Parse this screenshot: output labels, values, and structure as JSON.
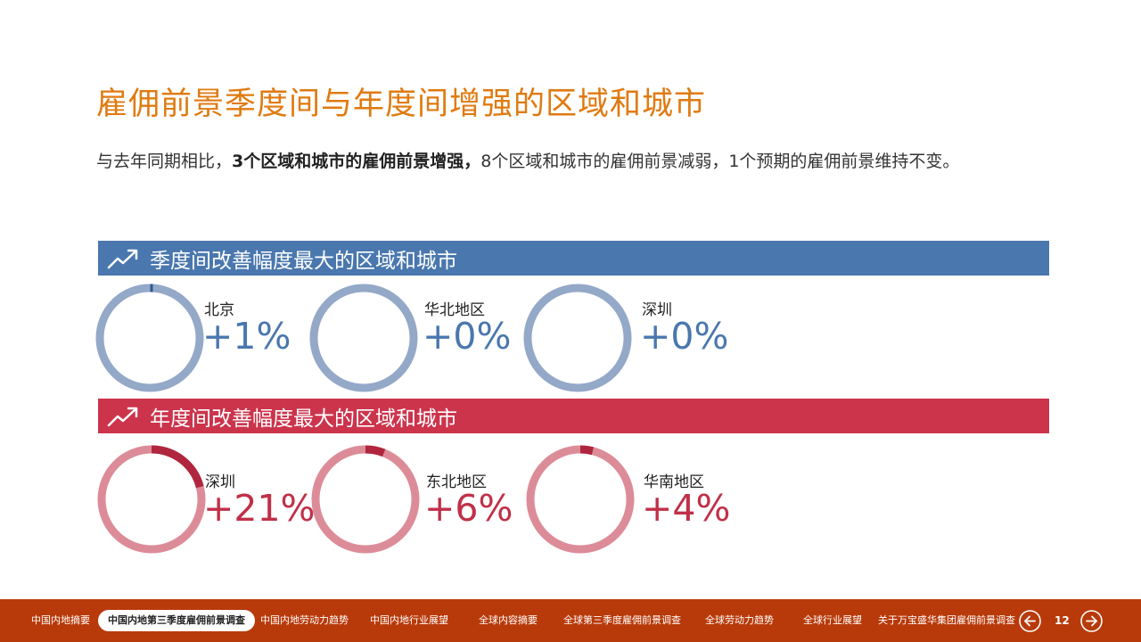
{
  "title": "雇佣前景季度间与年度间增强的区域和城市",
  "subtitle": {
    "part1": "与去年同期相比，",
    "bold": "3个区域和城市的雇佣前景增强，",
    "part2": "8个区域和城市的雇佣前景减弱，1个预期的雇佣前景维持不变。"
  },
  "colors": {
    "title": "#e07a10",
    "blue_band": "#4a77ae",
    "blue_ring": "#94a8c8",
    "blue_arc": "#2e5a90",
    "red_band": "#cc344c",
    "red_ring": "#dc8c98",
    "red_arc": "#b0263e",
    "navbar": "#b83a0a"
  },
  "quarterly": {
    "heading": "季度间改善幅度最大的区域和城市",
    "icon": "trend-up-icon",
    "items": [
      {
        "name": "北京",
        "value": "+1%",
        "percent": 1
      },
      {
        "name": "华北地区",
        "value": "+0%",
        "percent": 0
      },
      {
        "name": "深圳",
        "value": "+0%",
        "percent": 0
      }
    ]
  },
  "annual": {
    "heading": "年度间改善幅度最大的区域和城市",
    "icon": "trend-up-icon",
    "items": [
      {
        "name": "深圳",
        "value": "+21%",
        "percent": 21
      },
      {
        "name": "东北地区",
        "value": "+6%",
        "percent": 6
      },
      {
        "name": "华南地区",
        "value": "+4%",
        "percent": 4
      }
    ]
  },
  "nav": {
    "items": [
      "中国内地摘要",
      "中国内地第三季度雇佣前景调查",
      "中国内地劳动力趋势",
      "中国内地行业展望",
      "全球内容摘要",
      "全球第三季度雇佣前景调查",
      "全球劳动力趋势",
      "全球行业展望",
      "关于万宝盛华集团雇佣前景调查"
    ],
    "active_index": 1,
    "page_number": "12",
    "prev_icon": "arrow-left-icon",
    "next_icon": "arrow-right-icon"
  }
}
